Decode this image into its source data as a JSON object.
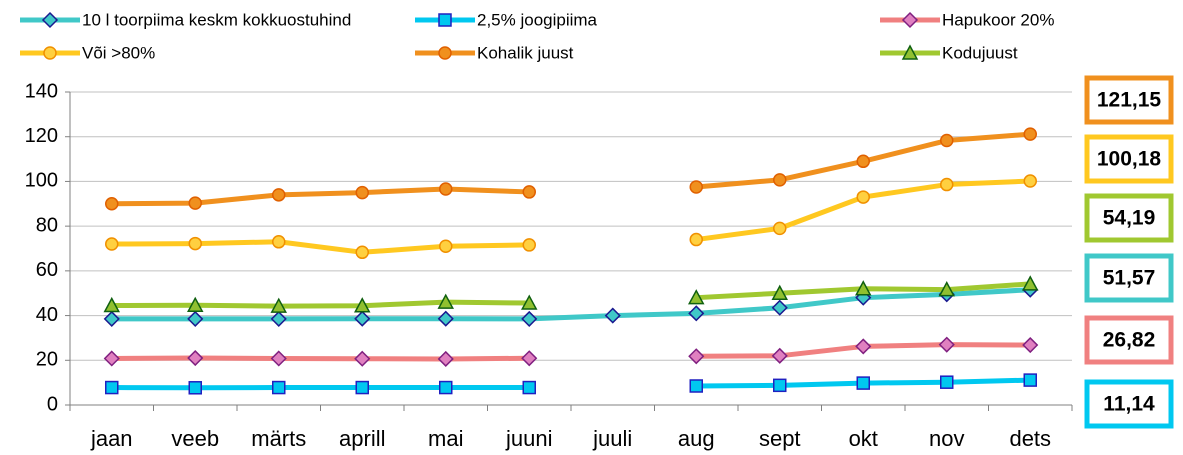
{
  "chart_data": {
    "type": "line",
    "categories": [
      "jaan",
      "veeb",
      "märts",
      "aprill",
      "mai",
      "juuni",
      "juuli",
      "aug",
      "sept",
      "okt",
      "nov",
      "dets"
    ],
    "ylim": [
      0,
      140
    ],
    "yticks": [
      0,
      20,
      40,
      60,
      80,
      100,
      120,
      140
    ],
    "grid": true,
    "legend": "top",
    "series": [
      {
        "name": "10 l toorpiima keskm kokkuostuhind",
        "color": "#40c8c8",
        "marker": "diamond",
        "marker_fill": "#40c8c8",
        "marker_edge": "#1a1a90",
        "values": [
          38.5,
          38.5,
          38.5,
          38.6,
          38.6,
          38.5,
          40,
          41,
          43.5,
          48,
          49.5,
          51.57
        ],
        "value_labels": [
          null,
          null,
          null,
          null,
          null,
          null,
          null,
          null,
          null,
          null,
          null,
          "51,57"
        ]
      },
      {
        "name": "2,5% joogipiima",
        "color": "#00c8f0",
        "marker": "square",
        "marker_fill": "#00c8f0",
        "marker_edge": "#2020c0",
        "values": [
          7.8,
          7.7,
          7.8,
          7.8,
          7.8,
          7.8,
          null,
          8.5,
          8.8,
          9.8,
          10.2,
          11.14
        ],
        "value_labels": [
          null,
          null,
          null,
          null,
          null,
          null,
          null,
          null,
          null,
          null,
          null,
          "11,14"
        ]
      },
      {
        "name": "Hapukoor 20%",
        "color": "#f08080",
        "marker": "diamond",
        "marker_fill": "#e080c0",
        "marker_edge": "#802080",
        "values": [
          20.8,
          21,
          20.8,
          20.7,
          20.6,
          20.9,
          null,
          21.8,
          22,
          26.2,
          27,
          26.82
        ],
        "value_labels": [
          null,
          null,
          null,
          null,
          null,
          null,
          null,
          null,
          null,
          null,
          null,
          "26,82"
        ]
      },
      {
        "name": "Või >80%",
        "color": "#ffc820",
        "marker": "circle",
        "marker_fill": "#ffd040",
        "marker_edge": "#f09000",
        "values": [
          72,
          72.2,
          73,
          68.3,
          71,
          71.6,
          null,
          74,
          79,
          93,
          98.6,
          100.18
        ],
        "value_labels": [
          null,
          null,
          null,
          null,
          null,
          null,
          null,
          null,
          null,
          null,
          null,
          "100,18"
        ]
      },
      {
        "name": "Kohalik juust",
        "color": "#f0901e",
        "marker": "circle",
        "marker_fill": "#f0901e",
        "marker_edge": "#e06000",
        "values": [
          90,
          90.3,
          94,
          95,
          96.6,
          95.3,
          null,
          97.5,
          100.7,
          109,
          118.3,
          121.15
        ],
        "value_labels": [
          null,
          null,
          null,
          null,
          null,
          null,
          null,
          null,
          null,
          null,
          null,
          "121,15"
        ]
      },
      {
        "name": "Kodujuust",
        "color": "#a0c830",
        "marker": "triangle",
        "marker_fill": "#90c030",
        "marker_edge": "#106010",
        "values": [
          44.5,
          44.6,
          44.2,
          44.4,
          46,
          45.6,
          null,
          48,
          50,
          52,
          51.6,
          54.19
        ],
        "value_labels": [
          null,
          null,
          null,
          null,
          null,
          null,
          null,
          null,
          null,
          null,
          null,
          "54,19"
        ]
      }
    ]
  }
}
